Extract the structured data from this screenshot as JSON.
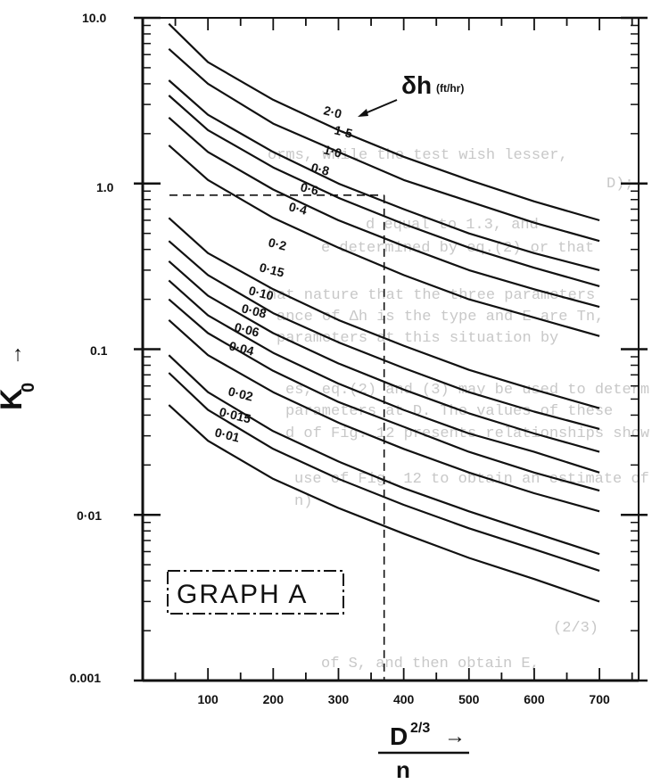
{
  "bleed_text": [
    "orms, while the test wish lesser,",
    "D);",
    "d equal to 1.3, and",
    "e determined by eq.(2) or that",
    "hat nature that the three parameters",
    "ance of Δh is the type and E are Tn,",
    "parameters at this situation by",
    "es, eq.(2) and (3) may be used to determ.",
    "parameters at D. The values of these",
    "d of Fig. 12 presents relationships show",
    "use of Fig. 12 to obtain an estimate of",
    "n)",
    "(2/3)",
    "of S, and then obtain E,"
  ],
  "chart_data": {
    "type": "line",
    "title": "",
    "xlabel_numerator": "D",
    "xlabel_exponent": "2/3",
    "xlabel_denominator": "n",
    "xlabel_arrow": "→",
    "ylabel": "K",
    "ylabel_subscript": "0",
    "ylabel_arrow": "→",
    "xlim": [
      0,
      760
    ],
    "ylim": [
      0.001,
      10
    ],
    "yscale": "log",
    "x_ticks": [
      100,
      200,
      300,
      400,
      500,
      600,
      700
    ],
    "x_tick_labels": [
      "100",
      "200",
      "300",
      "400",
      "500",
      "600",
      "700"
    ],
    "y_ticks": [
      0.001,
      0.01,
      0.1,
      1,
      10
    ],
    "y_tick_labels": [
      "0.001",
      "0·01",
      "0.1",
      "1.0",
      "10.0"
    ],
    "legend_title": "δh",
    "legend_units": "(ft/hr)",
    "graph_label": "GRAPH A",
    "series": [
      {
        "name": "2·0",
        "x": [
          40,
          100,
          200,
          300,
          400,
          500,
          600,
          700
        ],
        "y": [
          9.2,
          5.4,
          3.2,
          2.1,
          1.45,
          1.05,
          0.78,
          0.6
        ]
      },
      {
        "name": "1·5",
        "x": [
          40,
          100,
          200,
          300,
          400,
          500,
          600,
          700
        ],
        "y": [
          6.5,
          4.0,
          2.3,
          1.55,
          1.05,
          0.78,
          0.58,
          0.45
        ]
      },
      {
        "name": "1·0",
        "x": [
          40,
          100,
          200,
          300,
          400,
          500,
          600,
          700
        ],
        "y": [
          4.2,
          2.6,
          1.55,
          1.0,
          0.7,
          0.5,
          0.38,
          0.3
        ]
      },
      {
        "name": "0·8",
        "x": [
          40,
          100,
          200,
          300,
          400,
          500,
          600,
          700
        ],
        "y": [
          3.4,
          2.1,
          1.25,
          0.82,
          0.57,
          0.41,
          0.31,
          0.24
        ]
      },
      {
        "name": "0·6",
        "x": [
          40,
          100,
          200,
          300,
          400,
          500,
          600,
          700
        ],
        "y": [
          2.5,
          1.55,
          0.92,
          0.6,
          0.42,
          0.3,
          0.23,
          0.18
        ]
      },
      {
        "name": "0·4",
        "x": [
          40,
          100,
          200,
          300,
          400,
          500,
          600,
          700
        ],
        "y": [
          1.7,
          1.05,
          0.62,
          0.41,
          0.28,
          0.2,
          0.155,
          0.12
        ]
      },
      {
        "name": "0·2",
        "x": [
          40,
          100,
          200,
          300,
          400,
          500,
          600,
          700
        ],
        "y": [
          0.62,
          0.38,
          0.23,
          0.15,
          0.105,
          0.075,
          0.057,
          0.044
        ]
      },
      {
        "name": "0·15",
        "x": [
          40,
          100,
          200,
          300,
          400,
          500,
          600,
          700
        ],
        "y": [
          0.45,
          0.28,
          0.165,
          0.11,
          0.077,
          0.055,
          0.042,
          0.033
        ]
      },
      {
        "name": "0·10",
        "x": [
          40,
          100,
          200,
          300,
          400,
          500,
          600,
          700
        ],
        "y": [
          0.34,
          0.21,
          0.125,
          0.082,
          0.057,
          0.041,
          0.031,
          0.024
        ]
      },
      {
        "name": "0·08",
        "x": [
          40,
          100,
          200,
          300,
          400,
          500,
          600,
          700
        ],
        "y": [
          0.26,
          0.16,
          0.095,
          0.062,
          0.043,
          0.031,
          0.024,
          0.018
        ]
      },
      {
        "name": "0·06",
        "x": [
          40,
          100,
          200,
          300,
          400,
          500,
          600,
          700
        ],
        "y": [
          0.2,
          0.125,
          0.074,
          0.048,
          0.034,
          0.024,
          0.018,
          0.014
        ]
      },
      {
        "name": "0·04",
        "x": [
          40,
          100,
          200,
          300,
          400,
          500,
          600,
          700
        ],
        "y": [
          0.15,
          0.092,
          0.055,
          0.036,
          0.025,
          0.018,
          0.0135,
          0.0105
        ]
      },
      {
        "name": "0·02",
        "x": [
          40,
          100,
          200,
          300,
          400,
          500,
          600,
          700
        ],
        "y": [
          0.092,
          0.055,
          0.032,
          0.021,
          0.0145,
          0.0105,
          0.0078,
          0.0058
        ]
      },
      {
        "name": "0·015",
        "x": [
          40,
          100,
          200,
          300,
          400,
          500,
          600,
          700
        ],
        "y": [
          0.072,
          0.043,
          0.025,
          0.0165,
          0.0115,
          0.0083,
          0.0062,
          0.0046
        ]
      },
      {
        "name": "0·01",
        "x": [
          40,
          100,
          200,
          300,
          400,
          500,
          600,
          700
        ],
        "y": [
          0.046,
          0.028,
          0.0165,
          0.011,
          0.0077,
          0.0055,
          0.0041,
          0.003
        ]
      }
    ],
    "reference_lines": {
      "x": 370,
      "y": 0.85
    }
  }
}
